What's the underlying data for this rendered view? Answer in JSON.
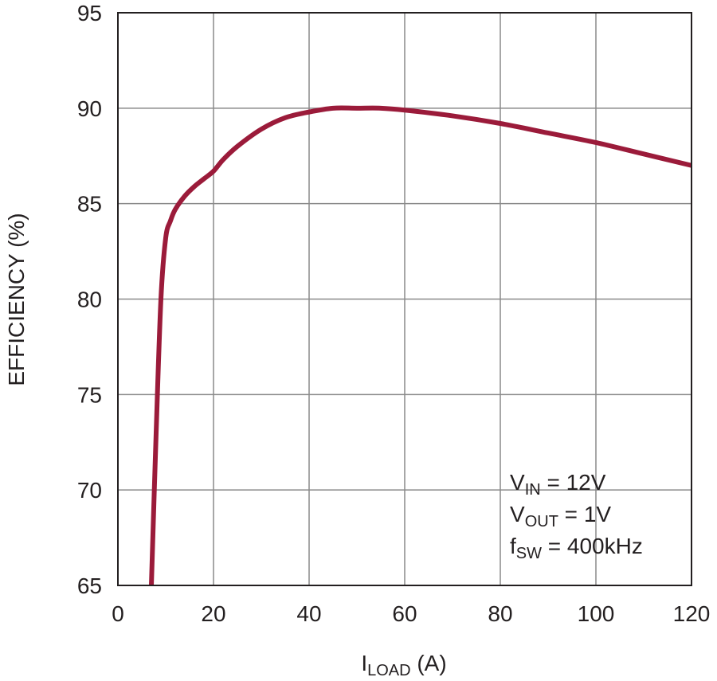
{
  "chart_data": {
    "type": "line",
    "xlabel": {
      "main": "I",
      "sub": "LOAD",
      "rest": " (A)"
    },
    "ylabel": "EFFICIENCY (%)",
    "xlim": [
      0,
      120
    ],
    "ylim": [
      65,
      95
    ],
    "xticks": [
      0,
      20,
      40,
      60,
      80,
      100,
      120
    ],
    "yticks": [
      65,
      70,
      75,
      80,
      85,
      90,
      95
    ],
    "grid": true,
    "series": [
      {
        "color": "#9b1b3a",
        "x": [
          7,
          8,
          9,
          10,
          11,
          12,
          14,
          16,
          18,
          20,
          22,
          25,
          30,
          35,
          40,
          45,
          50,
          55,
          60,
          70,
          80,
          90,
          100,
          110,
          120
        ],
        "y": [
          65,
          73,
          80,
          83.2,
          84.1,
          84.7,
          85.4,
          85.9,
          86.3,
          86.7,
          87.3,
          88.0,
          88.9,
          89.5,
          89.8,
          90.0,
          90.0,
          90.0,
          89.9,
          89.6,
          89.2,
          88.7,
          88.2,
          87.6,
          87.0
        ]
      }
    ],
    "annotations": [
      {
        "main": "V",
        "sub": "IN",
        "rest": " = 12V"
      },
      {
        "main": "V",
        "sub": "OUT",
        "rest": " = 1V"
      },
      {
        "main": "f",
        "sub": "SW",
        "rest": " = 400kHz"
      }
    ],
    "annotation_position": "bottom-right"
  }
}
